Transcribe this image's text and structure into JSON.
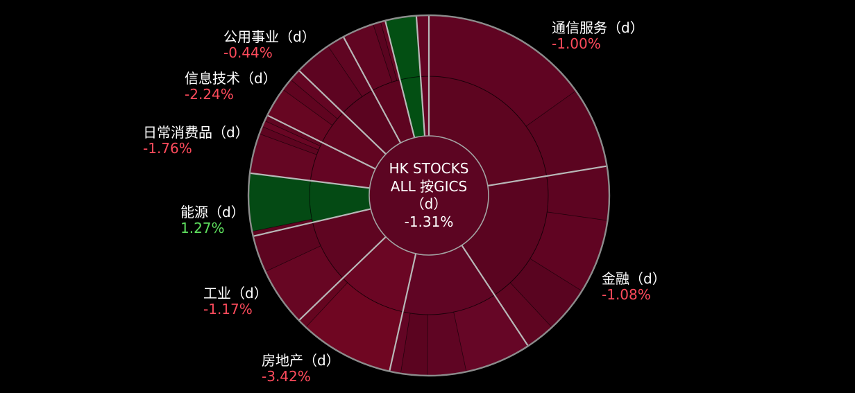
{
  "chart_data": {
    "type": "pie",
    "center": {
      "line1": "HK STOCKS",
      "line2": "ALL 按GICS",
      "line3": "（d）",
      "value": "-1.31%",
      "color": "#5c0522"
    },
    "sectors": [
      {
        "name": "通信服务（d）",
        "change": "-1.00%",
        "change_color": "#ff4b5c",
        "share": 0.2239,
        "color": "#5d0520",
        "children": [
          {
            "share": 0.1514,
            "color": "#600422"
          },
          {
            "share": 0.0725,
            "color": "#5b0420"
          }
        ]
      },
      {
        "name": "金融（d）",
        "change": "-1.08%",
        "change_color": "#ff4b5c",
        "share": 0.1834,
        "color": "#5a0420",
        "children": [
          {
            "share": 0.0483,
            "color": "#5d0421"
          },
          {
            "share": 0.0667,
            "color": "#600422"
          },
          {
            "share": 0.0417,
            "color": "#590420"
          },
          {
            "share": 0.0267,
            "color": "#5f0521"
          }
        ]
      },
      {
        "share": 0.1277,
        "color": "#600524",
        "children": [
          {
            "share": 0.0594,
            "color": "#660626"
          },
          {
            "share": 0.0347,
            "color": "#5f0523"
          },
          {
            "share": 0.0236,
            "color": "#5b0420"
          },
          {
            "share": 0.01,
            "color": "#630524"
          }
        ]
      },
      {
        "name": "房地产（d）",
        "change": "-3.42%",
        "change_color": "#ff4b5c",
        "share": 0.093,
        "color": "#6b0624",
        "children": [
          {
            "share": 0.0844,
            "color": "#6f0622"
          },
          {
            "share": 0.0086,
            "color": "#650520"
          }
        ]
      },
      {
        "name": "工业（d）",
        "change": "-1.17%",
        "change_color": "#ff4b5c",
        "share": 0.0856,
        "color": "#5f0521",
        "children": [
          {
            "share": 0.0525,
            "color": "#670623"
          },
          {
            "share": 0.0331,
            "color": "#5d0420"
          }
        ]
      },
      {
        "name": "能源（d）",
        "change": "1.27%",
        "change_color": "#5ee05e",
        "share": 0.0561,
        "color": "#044a14",
        "children": [
          {
            "share": 0.0044,
            "color": "#5f0420"
          },
          {
            "share": 0.0517,
            "color": "#044a14"
          }
        ]
      },
      {
        "name": "日常消费品（d）",
        "change": "-1.76%",
        "change_color": "#ff4b5c",
        "share": 0.0536,
        "color": "#640523",
        "children": [
          {
            "share": 0.0358,
            "color": "#650623"
          },
          {
            "share": 0.0069,
            "color": "#5e0420"
          },
          {
            "share": 0.0056,
            "color": "#690624"
          },
          {
            "share": 0.0053,
            "color": "#600521"
          }
        ]
      },
      {
        "name": "信息技术（d）",
        "change": "-2.24%",
        "change_color": "#ff4b5c",
        "share": 0.0486,
        "color": "#620521",
        "children": [
          {
            "share": 0.0267,
            "color": "#670622"
          },
          {
            "share": 0.0111,
            "color": "#600420"
          },
          {
            "share": 0.0108,
            "color": "#640523"
          }
        ]
      },
      {
        "name": "公用事业（d）",
        "change": "-0.44%",
        "change_color": "#ff4b5c",
        "share": 0.0494,
        "color": "#5b0420",
        "children": [
          {
            "share": 0.0336,
            "color": "#5d0421"
          },
          {
            "share": 0.0158,
            "color": "#600522"
          }
        ]
      },
      {
        "share": 0.0397,
        "color": "#5e0420",
        "children": [
          {
            "share": 0.0286,
            "color": "#610522"
          },
          {
            "share": 0.0069,
            "color": "#5a0420"
          },
          {
            "share": 0.0042,
            "color": "#660623"
          }
        ]
      },
      {
        "share": 0.0278,
        "color": "#034f13",
        "children": [
          {
            "share": 0.0278,
            "color": "#034f13"
          }
        ]
      },
      {
        "share": 0.0111,
        "color": "#640524",
        "children": [
          {
            "share": 0.0111,
            "color": "#640524"
          }
        ]
      }
    ]
  }
}
